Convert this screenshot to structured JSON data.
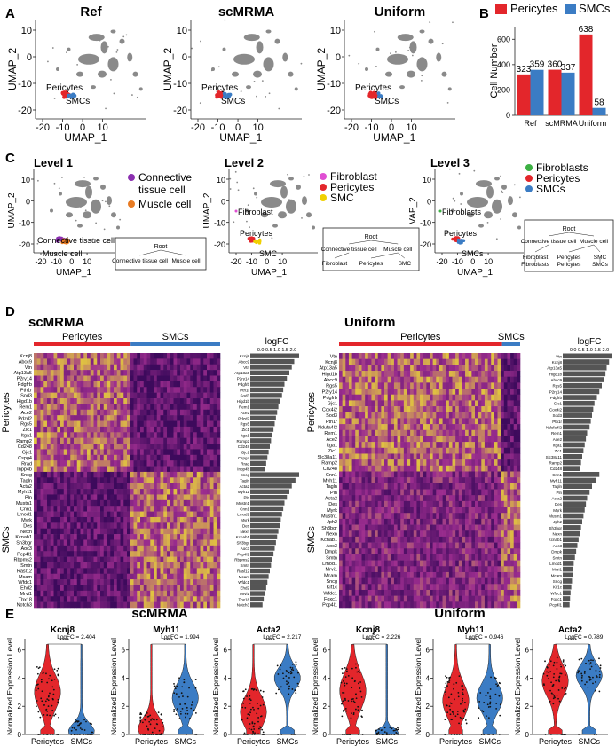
{
  "panel_letters": {
    "A": "A",
    "B": "B",
    "C": "C",
    "D": "D",
    "E": "E"
  },
  "colors": {
    "pericytes": "#e3262b",
    "smcs": "#3b7cc4",
    "cells": "#8a8a8a",
    "fibro_pink": "#e04fd3",
    "fibro_green": "#3cb043",
    "muscle_orange": "#e87b23",
    "connective_purple": "#8b2fb0",
    "smc_yellow": "#f0d000",
    "heat_low": "#3d0a5c",
    "heat_mid": "#9c2d8f",
    "heat_high": "#f3ec2b"
  },
  "panelA": {
    "xlabel": "UMAP_1",
    "ylabel": "UMAP_2",
    "xticks": [
      "-20",
      "-10",
      "0",
      "10"
    ],
    "yticks": [
      "10",
      "0",
      "-10",
      "-20"
    ],
    "label_pericytes": "Pericytes",
    "label_smcs": "SMCs",
    "plots": [
      {
        "title": "Ref"
      },
      {
        "title": "scMRMA"
      },
      {
        "title": "Uniform"
      }
    ]
  },
  "chart_data": [
    {
      "type": "bar",
      "panel": "B",
      "categories": [
        "Ref",
        "scMRMA",
        "Uniform"
      ],
      "series": [
        {
          "name": "Pericytes",
          "values": [
            323,
            360,
            638
          ]
        },
        {
          "name": "SMCs",
          "values": [
            359,
            337,
            58
          ]
        }
      ],
      "ylabel": "Cell Number",
      "yticks": [
        "0",
        "200",
        "400",
        "600"
      ],
      "ylim": [
        0,
        700
      ],
      "legend": "top"
    },
    {
      "type": "scatter",
      "panel": "E",
      "plots": [
        {
          "gene": "Kcnj8",
          "logfc_text": "LogFC = 2.404",
          "sig": "****",
          "group": "scMRMA"
        },
        {
          "gene": "Myh11",
          "logfc_text": "LogFC = 1.994",
          "sig": "****",
          "group": "scMRMA"
        },
        {
          "gene": "Acta2",
          "logfc_text": "LogFC = 2.217",
          "sig": "****",
          "group": "scMRMA"
        },
        {
          "gene": "Kcnj8",
          "logfc_text": "LogFC = 2.226",
          "sig": "****",
          "group": "Uniform"
        },
        {
          "gene": "Myh11",
          "logfc_text": "LogFC = 0.946",
          "sig": "****",
          "group": "Uniform"
        },
        {
          "gene": "Acta2",
          "logfc_text": "LogFC = 0.789",
          "sig": "****",
          "group": "Uniform"
        }
      ],
      "ylabel": "Normalized Expression Level",
      "yticks": [
        "0",
        "2",
        "4",
        "6"
      ],
      "xcategories": [
        "Pericytes",
        "SMCs"
      ]
    }
  ],
  "panelC": {
    "xlabel": "UMAP_1",
    "ylabel": "UMAP_2",
    "ylabel_cut": "VAP_2",
    "xticks": [
      "-20",
      "-10",
      "0",
      "10"
    ],
    "yticks": [
      "10",
      "0",
      "-10",
      "-20"
    ],
    "level1": {
      "title": "Level 1",
      "legend": [
        "Connective",
        "tissue cell",
        "Muscle cell"
      ],
      "label_conn": "Connective tissue cell",
      "label_muscle": "Muscle cell",
      "tree": {
        "root": "Root",
        "children": [
          "Connective tissue cell",
          "Muscle cell"
        ]
      }
    },
    "level2": {
      "title": "Level 2",
      "legend": [
        "Fibroblast",
        "Pericytes",
        "SMC"
      ],
      "label_fibro": "Fibroblast",
      "label_peri": "Pericytes",
      "label_smc": "SMC",
      "tree": {
        "root": "Root",
        "children": [
          "Connective tissue cell",
          "Muscle cell"
        ],
        "leaves": [
          "Fibroblast",
          "Pericytes",
          "SMC"
        ]
      }
    },
    "level3": {
      "title": "Level 3",
      "legend": [
        "Fibroblasts",
        "Pericytes",
        "SMCs"
      ],
      "label_fibro": "Fibroblasts",
      "label_peri": "Pericytes",
      "label_smc": "SMCs",
      "tree": {
        "root": "Root",
        "children": [
          "Connective tissue cell",
          "Muscle cell"
        ],
        "mid": [
          "Fibroblast",
          "Pericytes",
          "SMC"
        ],
        "leaves": [
          "Fibroblasts",
          "Pericytes",
          "SMCs"
        ]
      }
    }
  },
  "panelD": {
    "left": {
      "title": "scMRMA",
      "groups": [
        "Pericytes",
        "SMCs"
      ],
      "logfc_label": "logFC",
      "logfc_ticks": "0.0 0.5 1.0 1.5 2.0",
      "peri_genes": [
        "Kcnj8",
        "Abcc9",
        "Vtn",
        "Atp13a5",
        "P2ry14",
        "Pdgfrb",
        "Pth1r",
        "Sod3",
        "Higd1b",
        "Rem1",
        "Ace2",
        "Pdzd2",
        "Rgs5",
        "Zic1",
        "Itga1",
        "Ramp2",
        "Cd248",
        "Gjc1",
        "Cspg4",
        "Rrad",
        "Inpp4b"
      ],
      "smc_genes": [
        "Sncg",
        "Tagln",
        "Acta2",
        "Myh11",
        "Pln",
        "Mustn1",
        "Cnn1",
        "Lmod1",
        "Myrk",
        "Des",
        "Nexn",
        "Kcnab1",
        "Sh3bgr",
        "Aoc3",
        "Pcp4l1",
        "Rbpms2",
        "Smtn",
        "Rasl12",
        "Mcam",
        "Wfdc1",
        "Ehd2",
        "Mrvi1",
        "Tbx18",
        "Notch3"
      ],
      "peri_logfc": [
        2.0,
        1.8,
        1.7,
        1.6,
        1.5,
        1.4,
        1.35,
        1.3,
        1.2,
        1.15,
        1.1,
        1.05,
        1.0,
        0.95,
        0.9,
        0.85,
        0.8,
        0.75,
        0.7,
        0.65,
        0.6
      ],
      "smc_logfc": [
        2.0,
        1.85,
        1.7,
        1.6,
        1.5,
        1.4,
        1.35,
        1.3,
        1.25,
        1.2,
        1.15,
        1.1,
        1.05,
        1.0,
        0.95,
        0.9,
        0.85,
        0.8,
        0.75,
        0.7,
        0.65,
        0.6,
        0.55,
        0.5
      ]
    },
    "right": {
      "title": "Uniform",
      "groups": [
        "Pericytes",
        "SMCs"
      ],
      "logfc_label": "logFC",
      "logfc_ticks": "0.0 0.5 1.0 1.5 2.0",
      "peri_genes": [
        "Vtn",
        "Kcnj8",
        "Atp13a5",
        "Higd1b",
        "Abcc9",
        "Rgs5",
        "P2ry14",
        "Pdgfrb",
        "Gjc1",
        "Cox4i2",
        "Sod3",
        "Pth1r",
        "Ndufa4l2",
        "Rem1",
        "Ace2",
        "Itga1",
        "Zic1",
        "Slc38a11",
        "Ramp2",
        "Cd248"
      ],
      "smc_genes": [
        "Cnn1",
        "Myh11",
        "Tagln",
        "Pln",
        "Acta2",
        "Des",
        "Myrk",
        "Mustn1",
        "Jph2",
        "Sh3bgr",
        "Nexn",
        "Kcnab1",
        "Aoc3",
        "Dmpk",
        "Smtn",
        "Lmod1",
        "Mrvi1",
        "Mcam",
        "Sncg",
        "Kif1c",
        "Wfdc1",
        "Foxc1",
        "Pcp4l1"
      ],
      "peri_logfc": [
        2.0,
        1.9,
        1.8,
        1.75,
        1.7,
        1.6,
        1.5,
        1.4,
        1.3,
        1.25,
        1.2,
        1.15,
        1.1,
        1.0,
        0.95,
        0.9,
        0.85,
        0.8,
        0.75,
        0.7
      ],
      "smc_logfc": [
        1.5,
        1.35,
        1.2,
        1.1,
        1.0,
        0.95,
        0.9,
        0.85,
        0.8,
        0.75,
        0.7,
        0.65,
        0.6,
        0.55,
        0.5,
        0.45,
        0.42,
        0.4,
        0.38,
        0.35,
        0.32,
        0.3,
        0.28
      ]
    }
  },
  "panelE": {
    "group_left": "scMRMA",
    "group_right": "Uniform"
  }
}
